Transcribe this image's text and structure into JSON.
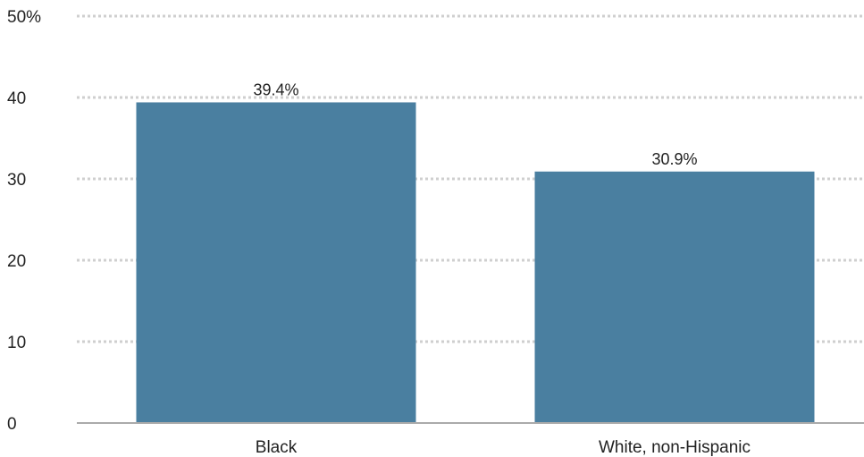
{
  "chart_data": {
    "type": "bar",
    "categories": [
      "Black",
      "White, non-Hispanic"
    ],
    "values": [
      39.4,
      30.9
    ],
    "data_labels": [
      "39.4%",
      "30.9%"
    ],
    "title": "",
    "xlabel": "",
    "ylabel": "",
    "ylim": [
      0,
      50
    ],
    "y_ticks": [
      0,
      10,
      20,
      30,
      40,
      50
    ],
    "y_tick_labels": [
      "0",
      "10",
      "20",
      "30",
      "40",
      "50%"
    ],
    "grid": true,
    "bar_color": "#4a7fa0",
    "grid_color": "#cfcfcf",
    "axis_color": "#aaaaaa"
  }
}
